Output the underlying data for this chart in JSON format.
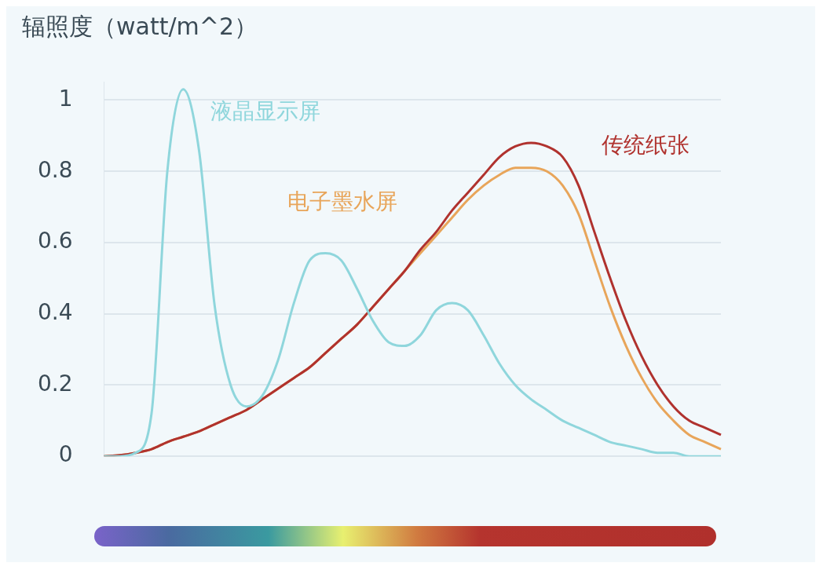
{
  "chart_data": {
    "type": "line",
    "ylabel": "辐照度（watt/m^2）",
    "categories": [
      null,
      null,
      null,
      null,
      null,
      null,
      null,
      null,
      null,
      null,
      null,
      null,
      null,
      null,
      null,
      null,
      null,
      null,
      null,
      null,
      null,
      null,
      null,
      null,
      null,
      null,
      null,
      null,
      null,
      null,
      null,
      null,
      null,
      null,
      null,
      null,
      null,
      null,
      null,
      null
    ],
    "series": [
      {
        "name": "液晶显示屏",
        "color": "#8fd6dc",
        "values": [
          0,
          0,
          0.01,
          0.12,
          0.8,
          1.03,
          0.86,
          0.42,
          0.2,
          0.14,
          0.17,
          0.27,
          0.43,
          0.55,
          0.57,
          0.55,
          0.47,
          0.38,
          0.32,
          0.31,
          0.34,
          0.41,
          0.43,
          0.41,
          0.34,
          0.26,
          0.2,
          0.16,
          0.13,
          0.1,
          0.08,
          0.06,
          0.04,
          0.03,
          0.02,
          0.01,
          0.01,
          0,
          0,
          0
        ]
      },
      {
        "name": "传统纸张",
        "color": "#b0322e",
        "values": [
          0,
          0.003,
          0.01,
          0.02,
          0.04,
          0.055,
          0.07,
          0.09,
          0.11,
          0.13,
          0.16,
          0.19,
          0.22,
          0.25,
          0.29,
          0.33,
          0.37,
          0.42,
          0.47,
          0.52,
          0.58,
          0.63,
          0.69,
          0.74,
          0.79,
          0.84,
          0.87,
          0.88,
          0.87,
          0.84,
          0.76,
          0.63,
          0.5,
          0.38,
          0.28,
          0.2,
          0.14,
          0.1,
          0.08,
          0.06
        ]
      },
      {
        "name": "电子墨水屏",
        "color": "#e8a55a",
        "values": [
          0,
          0.003,
          0.01,
          0.02,
          0.04,
          0.055,
          0.07,
          0.09,
          0.11,
          0.13,
          0.16,
          0.19,
          0.22,
          0.25,
          0.29,
          0.33,
          0.37,
          0.42,
          0.47,
          0.52,
          0.57,
          0.62,
          0.67,
          0.72,
          0.76,
          0.79,
          0.81,
          0.81,
          0.8,
          0.76,
          0.68,
          0.55,
          0.42,
          0.31,
          0.22,
          0.15,
          0.1,
          0.06,
          0.04,
          0.02
        ]
      }
    ],
    "ylim": [
      0,
      1.05
    ],
    "yticks": [
      0,
      0.2,
      0.4,
      0.6,
      0.8,
      1
    ],
    "grid": "y",
    "tick_labels": "y",
    "marker": "none",
    "line_style": "solid",
    "legend": false
  }
}
